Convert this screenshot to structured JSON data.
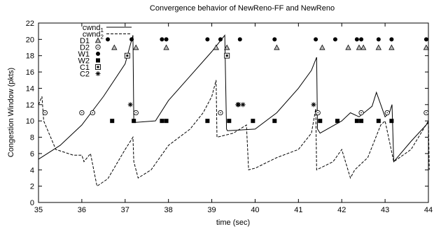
{
  "chart_data": {
    "type": "line",
    "title": "Convergence behavior of NewReno-FF and NewReno",
    "xlabel": "time (sec)",
    "ylabel": "Congestion Window (pkts)",
    "xlim": [
      35,
      44
    ],
    "ylim": [
      0,
      22
    ],
    "xticks": [
      35,
      36,
      37,
      38,
      39,
      40,
      41,
      42,
      43,
      44
    ],
    "yticks": [
      0,
      2,
      4,
      6,
      8,
      10,
      12,
      14,
      16,
      18,
      20,
      22
    ],
    "grid": false,
    "legend_position": "top-left",
    "series": [
      {
        "name": "cwnd",
        "subscript": "1",
        "style": "solid",
        "x": [
          35.0,
          35.5,
          36.0,
          36.5,
          37.0,
          37.18,
          37.2,
          37.7,
          38.0,
          38.5,
          39.0,
          39.3,
          39.34,
          39.36,
          40.0,
          40.5,
          41.0,
          41.3,
          41.42,
          41.44,
          41.5,
          42.0,
          42.2,
          42.4,
          42.7,
          42.8,
          43.0,
          43.1,
          43.16,
          43.2,
          43.6,
          44.0
        ],
        "values": [
          5.3,
          7.0,
          9.5,
          13.0,
          17.0,
          20.5,
          9.8,
          10.0,
          12.5,
          15.5,
          18.5,
          20.5,
          9.0,
          8.8,
          9.0,
          11.0,
          14.0,
          16.2,
          17.8,
          9.0,
          8.5,
          10.0,
          11.0,
          10.5,
          11.8,
          13.5,
          10.5,
          11.0,
          12.0,
          5.0,
          7.5,
          9.8
        ]
      },
      {
        "name": "cwnd",
        "subscript": "2",
        "style": "dashed",
        "x": [
          35.0,
          35.08,
          35.12,
          35.4,
          35.8,
          36.0,
          36.05,
          36.2,
          36.35,
          36.6,
          37.0,
          37.18,
          37.2,
          37.3,
          37.6,
          38.0,
          38.5,
          38.8,
          39.0,
          39.1,
          39.12,
          39.5,
          39.8,
          39.85,
          40.0,
          40.5,
          41.0,
          41.3,
          41.4,
          41.42,
          41.8,
          42.0,
          42.2,
          42.3,
          42.6,
          42.9,
          43.0,
          43.2,
          43.6,
          44.0,
          44.02
        ],
        "values": [
          12.0,
          13.0,
          10.0,
          6.5,
          5.8,
          5.8,
          5.0,
          6.0,
          2.0,
          2.9,
          6.5,
          8.0,
          5.0,
          3.0,
          4.0,
          7.0,
          9.0,
          11.0,
          13.0,
          15.0,
          8.0,
          8.5,
          9.5,
          4.0,
          4.2,
          5.5,
          6.5,
          8.5,
          11.5,
          4.0,
          5.0,
          6.5,
          3.0,
          4.0,
          5.5,
          9.5,
          10.0,
          5.0,
          6.5,
          10.0,
          4.0
        ]
      }
    ],
    "markers": [
      {
        "name": "D1",
        "symbol": "triangle",
        "x": [
          36.75,
          37.25,
          37.95,
          39.1,
          39.35,
          40.5,
          41.55,
          42.15,
          42.4,
          42.5,
          42.85,
          43.15,
          43.95
        ],
        "y": [
          19,
          19,
          19,
          19,
          19,
          19,
          19,
          19,
          19,
          19,
          19,
          19,
          19
        ]
      },
      {
        "name": "D2",
        "symbol": "open-circle",
        "x": [
          35.15,
          36.0,
          36.25,
          37.25,
          39.2,
          41.45,
          42.45,
          43.05,
          43.95
        ],
        "y": [
          11,
          11,
          11,
          11,
          11,
          11,
          11,
          11,
          11
        ]
      },
      {
        "name": "W1",
        "symbol": "filled-circle",
        "x": [
          36.6,
          37.15,
          37.85,
          37.95,
          38.9,
          39.2,
          39.65,
          40.45,
          41.4,
          41.85,
          42.35,
          42.45,
          42.85,
          43.15,
          43.95
        ],
        "y": [
          20,
          20,
          20,
          20,
          20,
          20,
          20,
          20,
          20,
          20,
          20,
          20,
          20,
          20,
          20
        ]
      },
      {
        "name": "W2",
        "symbol": "filled-square",
        "x": [
          36.7,
          37.2,
          37.85,
          37.95,
          38.9,
          39.4,
          39.95,
          40.45,
          41.5,
          41.9,
          42.35,
          42.45,
          42.85,
          43.15
        ],
        "y": [
          10,
          10,
          10,
          10,
          10,
          10,
          10,
          10,
          10,
          10,
          10,
          10,
          10,
          10
        ]
      },
      {
        "name": "C1",
        "symbol": "boxed-square",
        "x": [
          37.05,
          39.35
        ],
        "y": [
          18,
          18
        ]
      },
      {
        "name": "C2",
        "symbol": "asterisk",
        "x": [
          37.12,
          39.6,
          39.62,
          39.72,
          41.35
        ],
        "y": [
          12,
          12,
          12,
          12,
          12
        ]
      }
    ]
  }
}
